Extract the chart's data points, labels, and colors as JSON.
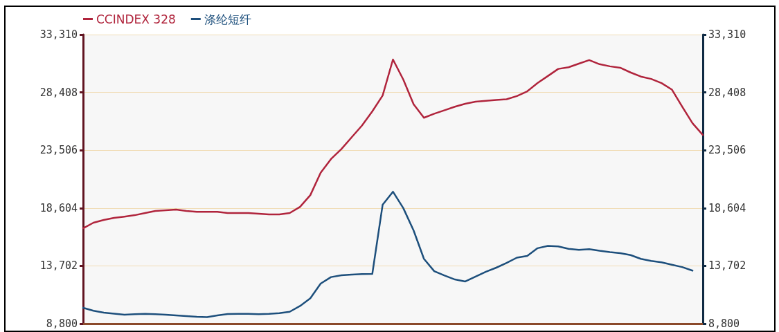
{
  "chart_data": {
    "type": "line",
    "categories": [
      null,
      null,
      null,
      null,
      null,
      null,
      null,
      null,
      null,
      null,
      null,
      null,
      null,
      null,
      null,
      null,
      null,
      null,
      null,
      null,
      null,
      null,
      null,
      null,
      null,
      null,
      null,
      null,
      null,
      null,
      null,
      null,
      null,
      null,
      null,
      null,
      null,
      null,
      null,
      null,
      null,
      null,
      null,
      null,
      null,
      null,
      null,
      null,
      null,
      null,
      null,
      null,
      null,
      null,
      null,
      null,
      null,
      null,
      null,
      null,
      null
    ],
    "series": [
      {
        "name": "CCINDEX 328",
        "color": "#b0243c",
        "values": [
          16890,
          17360,
          17600,
          17770,
          17880,
          18000,
          18180,
          18360,
          18410,
          18470,
          18360,
          18290,
          18290,
          18290,
          18180,
          18180,
          18180,
          18120,
          18060,
          18060,
          18180,
          18700,
          19700,
          21600,
          22760,
          23600,
          24600,
          25600,
          26800,
          28140,
          31200,
          29500,
          27400,
          26260,
          26600,
          26900,
          27200,
          27450,
          27620,
          27700,
          27770,
          27830,
          28100,
          28500,
          29200,
          29800,
          30400,
          30540,
          30850,
          31150,
          30800,
          30620,
          30500,
          30100,
          29750,
          29550,
          29200,
          28650,
          27200,
          25800,
          24800
        ]
      },
      {
        "name": "涤纶短纤",
        "color": "#1d4f7c",
        "axis": "y2",
        "values": [
          10150,
          9900,
          9740,
          9650,
          9560,
          9600,
          9640,
          9600,
          9560,
          9500,
          9440,
          9380,
          9360,
          9500,
          9620,
          9640,
          9640,
          9600,
          9640,
          9700,
          9810,
          10300,
          10950,
          12200,
          12750,
          12900,
          12960,
          13000,
          13020,
          18880,
          19990,
          18600,
          16700,
          14300,
          13250,
          12880,
          12550,
          12380,
          12800,
          13200,
          13550,
          13950,
          14400,
          14550,
          15200,
          15400,
          15350,
          15150,
          15060,
          15120,
          14980,
          14870,
          14780,
          14620,
          14300,
          14120,
          14000,
          13800,
          13600,
          13300,
          null
        ]
      }
    ],
    "ylim": [
      8800,
      33310
    ],
    "yticks": [
      {
        "value": 8800,
        "label": "8,800"
      },
      {
        "value": 13702,
        "label": "13,702"
      },
      {
        "value": 18604,
        "label": "18,604"
      },
      {
        "value": 23506,
        "label": "23,506"
      },
      {
        "value": 28408,
        "label": "28,408"
      },
      {
        "value": 33310,
        "label": "33,310"
      }
    ],
    "y2lim": [
      8800,
      33310
    ],
    "y2ticks": [
      {
        "value": 8800,
        "label": "8,800"
      },
      {
        "value": 13702,
        "label": "13,702"
      },
      {
        "value": 18604,
        "label": "18,604"
      },
      {
        "value": 23506,
        "label": "23,506"
      },
      {
        "value": 28408,
        "label": "28,408"
      },
      {
        "value": 33310,
        "label": "33,310"
      }
    ],
    "grid": "y",
    "legend": "top left",
    "marker": "none",
    "line_style": "solid",
    "tick_labels": "y"
  }
}
